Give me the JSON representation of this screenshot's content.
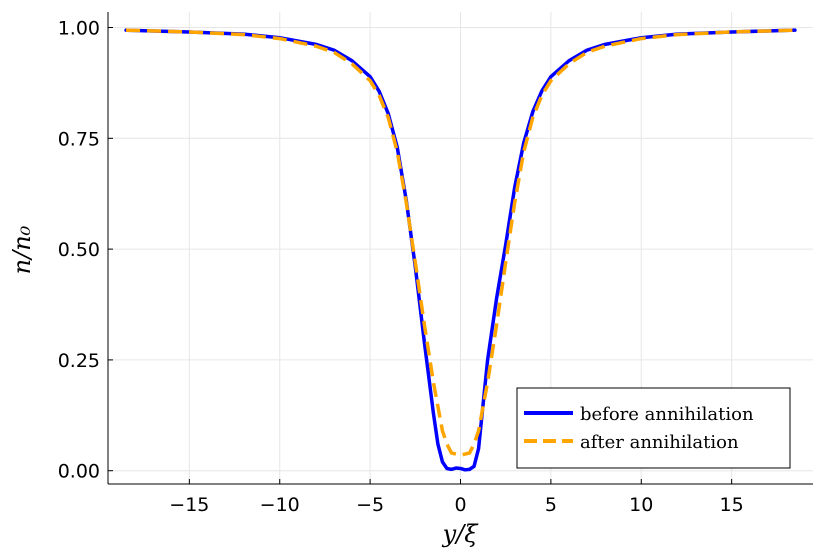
{
  "chart_data": {
    "type": "line",
    "xlabel": "y/ξ",
    "ylabel": "n/n₀",
    "xlim": [
      -19.5,
      19.5
    ],
    "ylim": [
      -0.03,
      1.035
    ],
    "x_ticks": [
      -15,
      -10,
      -5,
      0,
      5,
      10,
      15
    ],
    "x_tick_labels": [
      "−15",
      "−10",
      "−5",
      "0",
      "5",
      "10",
      "15"
    ],
    "y_ticks": [
      0,
      0.25,
      0.5,
      0.75,
      1.0
    ],
    "y_tick_labels": [
      "0.00",
      "0.25",
      "0.50",
      "0.75",
      "1.00"
    ],
    "grid": true,
    "legend_position": "bottom-right",
    "series": [
      {
        "name": "before annihilation",
        "color": "#0000ff",
        "style": "solid",
        "x": [
          -18.5,
          -15,
          -12,
          -10,
          -8,
          -7,
          -6,
          -5,
          -4.5,
          -4,
          -3.5,
          -3,
          -2.5,
          -2,
          -1.75,
          -1.5,
          -1.25,
          -1,
          -0.75,
          -0.5,
          -0.25,
          0,
          0.25,
          0.5,
          0.75,
          1,
          1.25,
          1.5,
          1.75,
          2,
          2.5,
          3,
          3.5,
          4,
          4.5,
          5,
          6,
          7,
          8,
          10,
          12,
          15,
          18.5
        ],
        "y": [
          0.994,
          0.99,
          0.985,
          0.977,
          0.962,
          0.949,
          0.925,
          0.889,
          0.856,
          0.806,
          0.73,
          0.61,
          0.46,
          0.29,
          0.21,
          0.13,
          0.06,
          0.02,
          0.005,
          0.003,
          0.006,
          0.005,
          0.002,
          0.003,
          0.01,
          0.05,
          0.15,
          0.25,
          0.32,
          0.39,
          0.51,
          0.64,
          0.74,
          0.81,
          0.857,
          0.889,
          0.925,
          0.949,
          0.962,
          0.977,
          0.985,
          0.99,
          0.994
        ]
      },
      {
        "name": "after annihilation",
        "color": "#ffa500",
        "style": "dashed",
        "x": [
          -18.5,
          -15,
          -12,
          -10,
          -8,
          -7,
          -6,
          -5,
          -4.5,
          -4,
          -3.5,
          -3,
          -2.5,
          -2,
          -1.5,
          -1,
          -0.75,
          -0.5,
          0,
          0.5,
          0.75,
          1,
          1.5,
          2,
          2.5,
          3,
          3.5,
          4,
          4.5,
          5,
          6,
          7,
          8,
          10,
          12,
          15,
          18.5
        ],
        "y": [
          0.994,
          0.99,
          0.984,
          0.975,
          0.958,
          0.944,
          0.918,
          0.88,
          0.847,
          0.797,
          0.72,
          0.605,
          0.47,
          0.33,
          0.2,
          0.09,
          0.06,
          0.04,
          0.035,
          0.04,
          0.06,
          0.09,
          0.2,
          0.33,
          0.47,
          0.605,
          0.72,
          0.797,
          0.847,
          0.88,
          0.918,
          0.944,
          0.958,
          0.975,
          0.984,
          0.99,
          0.994
        ]
      }
    ]
  }
}
